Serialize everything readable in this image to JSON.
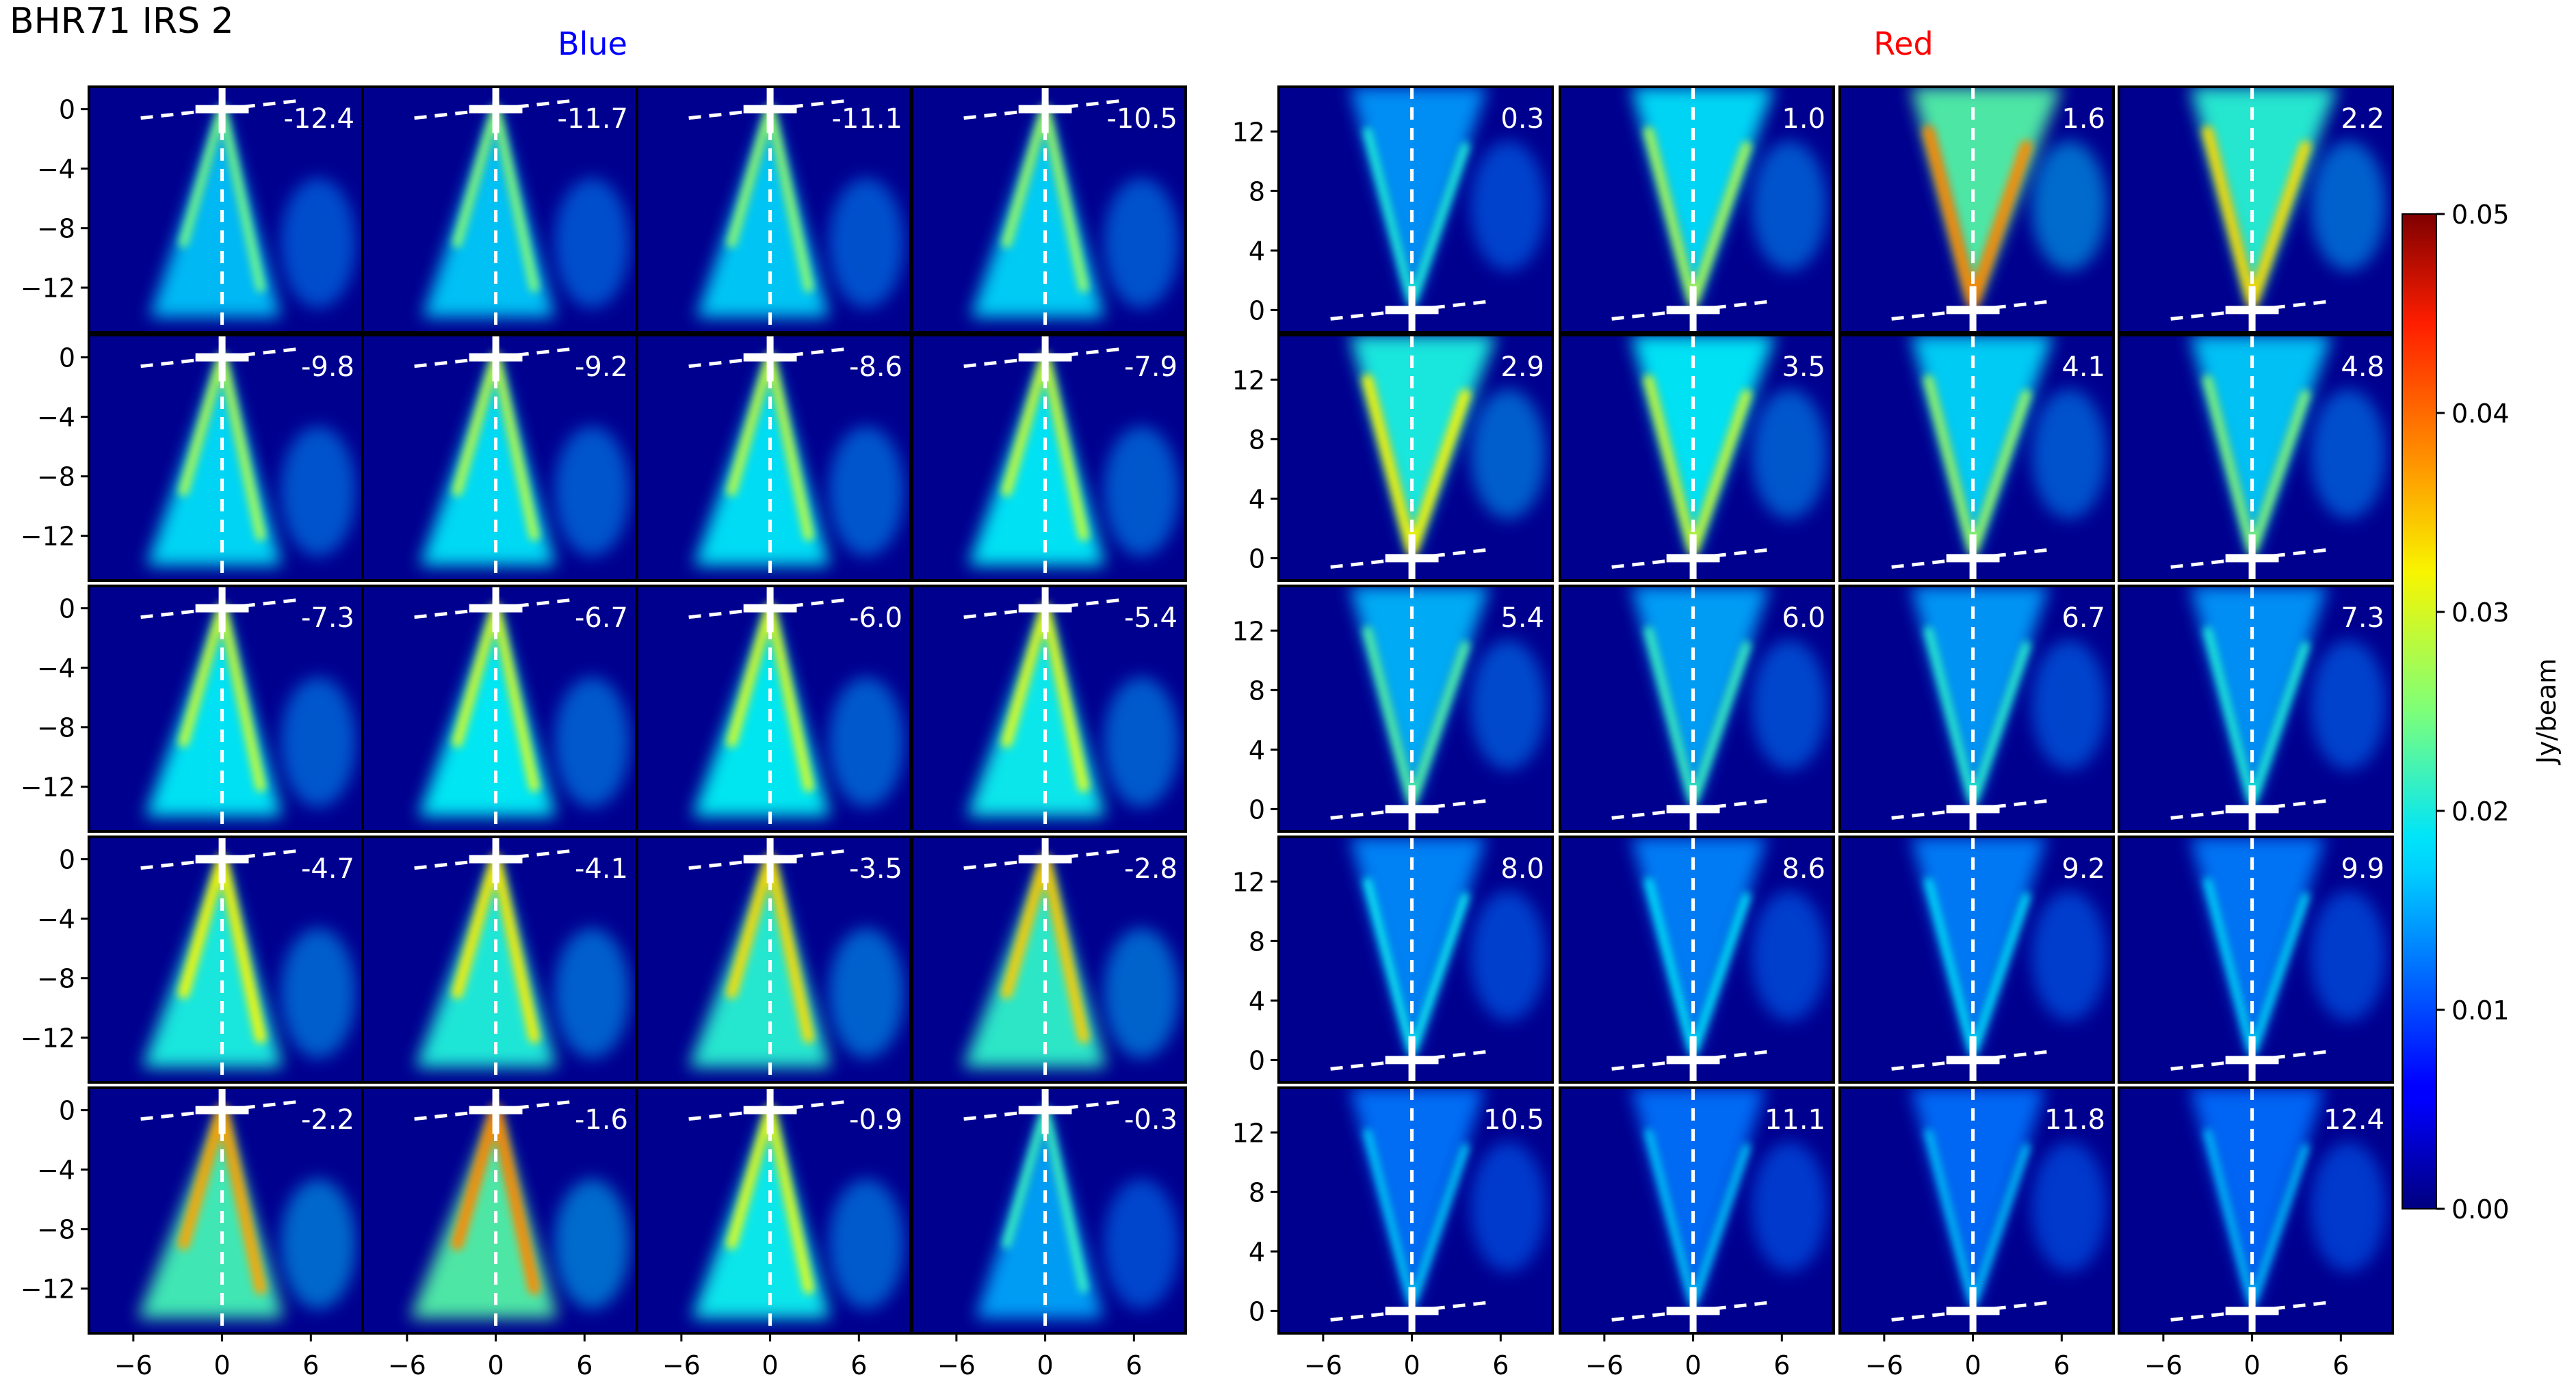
{
  "figure": {
    "title": "BHR71 IRS 2",
    "blue_label": "Blue",
    "red_label": "Red",
    "colors": {
      "blue_title": "#0000ff",
      "red_title": "#ff0000",
      "panel_bg": "#00008f",
      "marker": "#ffffff"
    }
  },
  "chart_data": [
    {
      "type": "heatmap",
      "title": "Blue",
      "colormap": "jet",
      "grid": false,
      "layout": "5x4 channel-map panels",
      "x_ticks": [
        -6,
        0,
        6
      ],
      "x_tick_labels": [
        "−6",
        "0",
        "6"
      ],
      "xlim": [
        -9,
        9.5
      ],
      "y_ticks": [
        0,
        -4,
        -8,
        -12
      ],
      "y_tick_labels": [
        "0",
        "−4",
        "−8",
        "−12"
      ],
      "ylim": [
        -15,
        1.5
      ],
      "panels": [
        {
          "velocity": "-12.4",
          "intensity": 0.35
        },
        {
          "velocity": "-11.7",
          "intensity": 0.38
        },
        {
          "velocity": "-11.1",
          "intensity": 0.4
        },
        {
          "velocity": "-10.5",
          "intensity": 0.42
        },
        {
          "velocity": "-9.8",
          "intensity": 0.45
        },
        {
          "velocity": "-9.2",
          "intensity": 0.47
        },
        {
          "velocity": "-8.6",
          "intensity": 0.48
        },
        {
          "velocity": "-7.9",
          "intensity": 0.5
        },
        {
          "velocity": "-7.3",
          "intensity": 0.5
        },
        {
          "velocity": "-6.7",
          "intensity": 0.52
        },
        {
          "velocity": "-6.0",
          "intensity": 0.53
        },
        {
          "velocity": "-5.4",
          "intensity": 0.55
        },
        {
          "velocity": "-4.7",
          "intensity": 0.6
        },
        {
          "velocity": "-4.1",
          "intensity": 0.62
        },
        {
          "velocity": "-3.5",
          "intensity": 0.65
        },
        {
          "velocity": "-2.8",
          "intensity": 0.68
        },
        {
          "velocity": "-2.2",
          "intensity": 0.75
        },
        {
          "velocity": "-1.6",
          "intensity": 0.8
        },
        {
          "velocity": "-0.9",
          "intensity": 0.55
        },
        {
          "velocity": "-0.3",
          "intensity": 0.25
        }
      ]
    },
    {
      "type": "heatmap",
      "title": "Red",
      "colormap": "jet",
      "grid": false,
      "layout": "5x4 channel-map panels",
      "x_ticks": [
        -6,
        0,
        6
      ],
      "x_tick_labels": [
        "−6",
        "0",
        "6"
      ],
      "xlim": [
        -9,
        9.5
      ],
      "y_ticks": [
        0,
        4,
        8,
        12
      ],
      "y_tick_labels": [
        "0",
        "4",
        "8",
        "12"
      ],
      "ylim": [
        -1.5,
        15
      ],
      "panels": [
        {
          "velocity": "0.3",
          "intensity": 0.2
        },
        {
          "velocity": "1.0",
          "intensity": 0.45
        },
        {
          "velocity": "1.6",
          "intensity": 0.8
        },
        {
          "velocity": "2.2",
          "intensity": 0.65
        },
        {
          "velocity": "2.9",
          "intensity": 0.6
        },
        {
          "velocity": "3.5",
          "intensity": 0.5
        },
        {
          "velocity": "4.1",
          "intensity": 0.42
        },
        {
          "velocity": "4.8",
          "intensity": 0.38
        },
        {
          "velocity": "5.4",
          "intensity": 0.3
        },
        {
          "velocity": "6.0",
          "intensity": 0.25
        },
        {
          "velocity": "6.7",
          "intensity": 0.22
        },
        {
          "velocity": "7.3",
          "intensity": 0.2
        },
        {
          "velocity": "8.0",
          "intensity": 0.15
        },
        {
          "velocity": "8.6",
          "intensity": 0.13
        },
        {
          "velocity": "9.2",
          "intensity": 0.12
        },
        {
          "velocity": "9.9",
          "intensity": 0.1
        },
        {
          "velocity": "10.5",
          "intensity": 0.08
        },
        {
          "velocity": "11.1",
          "intensity": 0.07
        },
        {
          "velocity": "11.8",
          "intensity": 0.06
        },
        {
          "velocity": "12.4",
          "intensity": 0.05
        }
      ]
    }
  ],
  "colorbar": {
    "label": "Jy/beam",
    "range": [
      0.0,
      0.05
    ],
    "ticks": [
      "0.00",
      "0.01",
      "0.02",
      "0.03",
      "0.04",
      "0.05"
    ]
  }
}
